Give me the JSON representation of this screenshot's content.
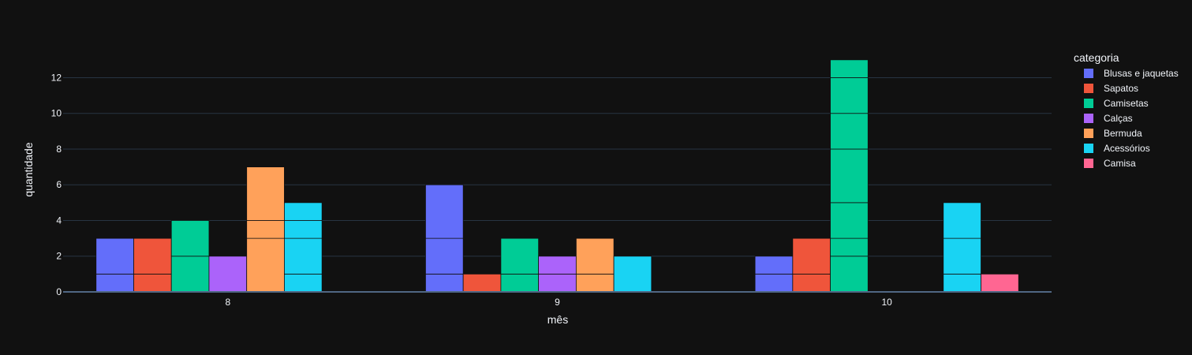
{
  "chart_data": {
    "type": "bar",
    "barmode": "group",
    "categories": [
      "8",
      "9",
      "10"
    ],
    "xlabel": "mês",
    "ylabel": "quantidade",
    "ylim": [
      0,
      13.7
    ],
    "yticks": [
      0,
      2,
      4,
      6,
      8,
      10,
      12
    ],
    "grid": true,
    "legend_title": "categoria",
    "legend_position": "right",
    "series": [
      {
        "name": "Blusas e jaquetas",
        "color": "#636efa",
        "values": [
          3,
          6,
          2
        ],
        "segments": [
          [
            1,
            2
          ],
          [
            1,
            2,
            3
          ],
          [
            1,
            1
          ]
        ]
      },
      {
        "name": "Sapatos",
        "color": "#ef553b",
        "values": [
          3,
          1,
          3
        ],
        "segments": [
          [
            1,
            2
          ],
          [
            1
          ],
          [
            1,
            2
          ]
        ]
      },
      {
        "name": "Camisetas",
        "color": "#00cc96",
        "values": [
          4,
          3,
          13
        ],
        "segments": [
          [
            2,
            2
          ],
          [
            1,
            2
          ],
          [
            2,
            1,
            2,
            3,
            2,
            2,
            1
          ]
        ]
      },
      {
        "name": "Calças",
        "color": "#ab63fa",
        "values": [
          2,
          2,
          0
        ],
        "segments": [
          [
            2
          ],
          [
            1,
            1
          ],
          []
        ]
      },
      {
        "name": "Bermuda",
        "color": "#ffa15a",
        "values": [
          7,
          3,
          0
        ],
        "segments": [
          [
            3,
            1,
            3
          ],
          [
            1,
            2
          ],
          []
        ]
      },
      {
        "name": "Acessórios",
        "color": "#19d3f3",
        "values": [
          5,
          2,
          5
        ],
        "segments": [
          [
            1,
            2,
            1,
            1
          ],
          [
            2
          ],
          [
            1,
            2,
            2
          ]
        ]
      },
      {
        "name": "Camisa",
        "color": "#ff6692",
        "values": [
          0,
          0,
          1
        ],
        "segments": [
          [],
          [],
          [
            1
          ]
        ]
      }
    ]
  }
}
